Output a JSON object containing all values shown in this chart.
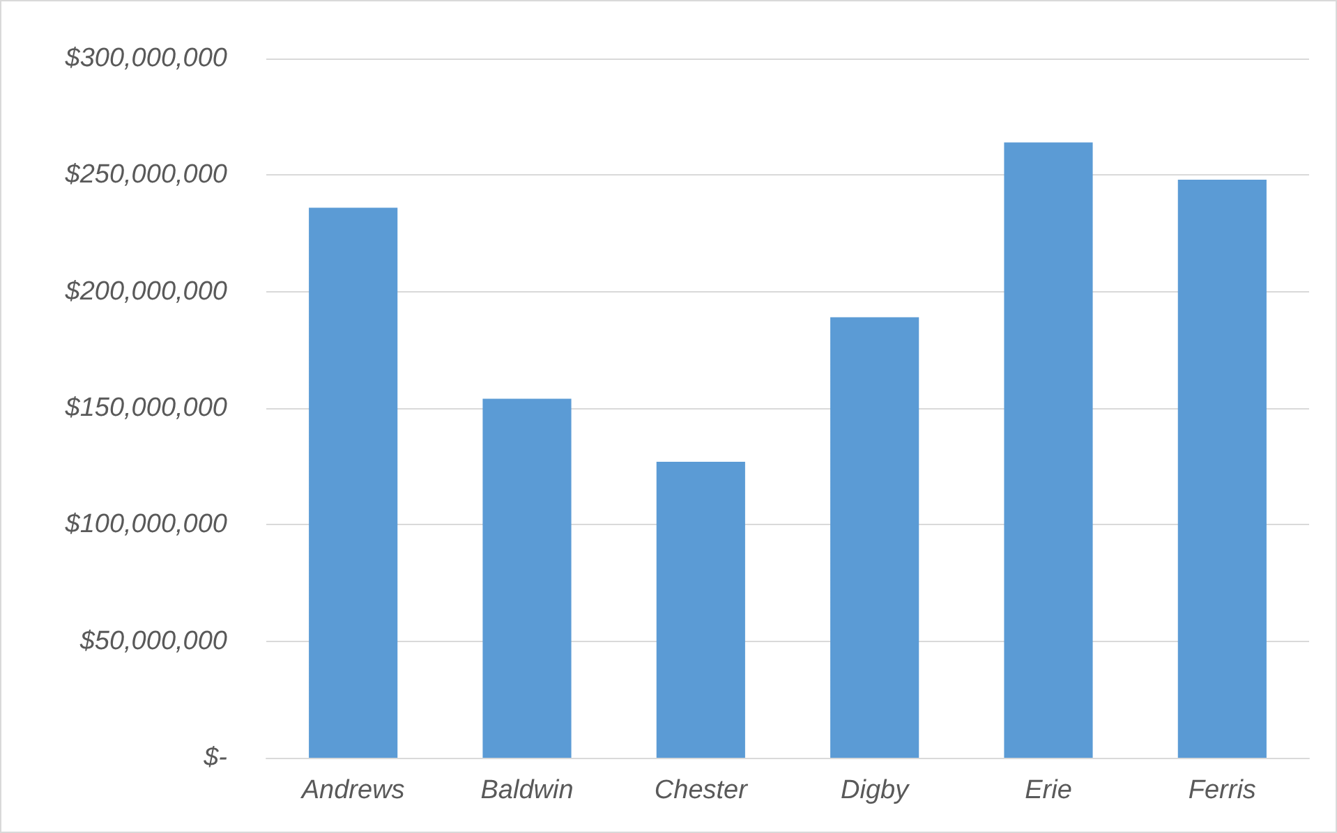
{
  "chart_data": {
    "type": "bar",
    "categories": [
      "Andrews",
      "Baldwin",
      "Chester",
      "Digby",
      "Erie",
      "Ferris"
    ],
    "values": [
      236000000,
      154000000,
      127000000,
      189000000,
      264000000,
      248000000
    ],
    "color": "#5b9bd5",
    "ylim": [
      0,
      300000000
    ],
    "yticks": [
      {
        "value": 0,
        "label": "$-"
      },
      {
        "value": 50000000,
        "label": "$50,000,000"
      },
      {
        "value": 100000000,
        "label": "$100,000,000"
      },
      {
        "value": 150000000,
        "label": "$150,000,000"
      },
      {
        "value": 200000000,
        "label": "$200,000,000"
      },
      {
        "value": 250000000,
        "label": "$250,000,000"
      },
      {
        "value": 300000000,
        "label": "$300,000,000"
      }
    ],
    "grid": "y"
  }
}
